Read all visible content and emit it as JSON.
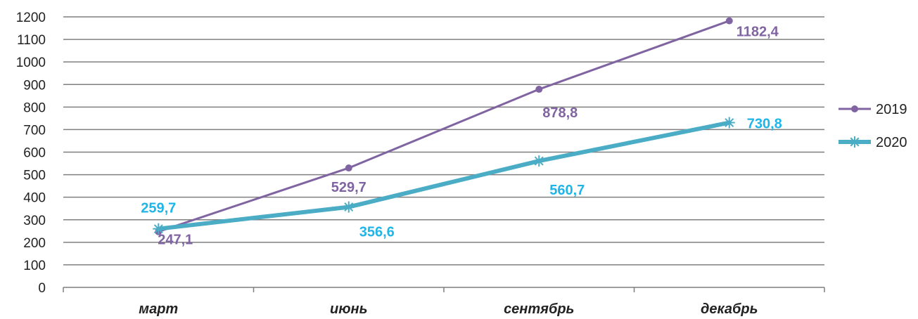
{
  "chart_data": {
    "type": "line",
    "categories": [
      "март",
      "июнь",
      "сентябрь",
      "декабрь"
    ],
    "ylim": [
      0,
      1200
    ],
    "ytick_step": 100,
    "ytick_labels": [
      "0",
      "100",
      "200",
      "300",
      "400",
      "500",
      "600",
      "700",
      "800",
      "900",
      "1000",
      "1100",
      "1200"
    ],
    "grid": true,
    "legend_position": "right",
    "series": [
      {
        "name": "2019",
        "values": [
          247.1,
          529.7,
          878.8,
          1182.4
        ],
        "value_labels": [
          "247,1",
          "529,7",
          "878,8",
          "1182,4"
        ],
        "color": "#8064a2",
        "marker": "circle"
      },
      {
        "name": "2020",
        "values": [
          259.7,
          356.6,
          560.7,
          730.8
        ],
        "value_labels": [
          "259,7",
          "356,6",
          "560,7",
          "730,8"
        ],
        "color": "#4bacc6",
        "label_color": "#1fb5e9",
        "marker": "asterisk"
      }
    ]
  }
}
